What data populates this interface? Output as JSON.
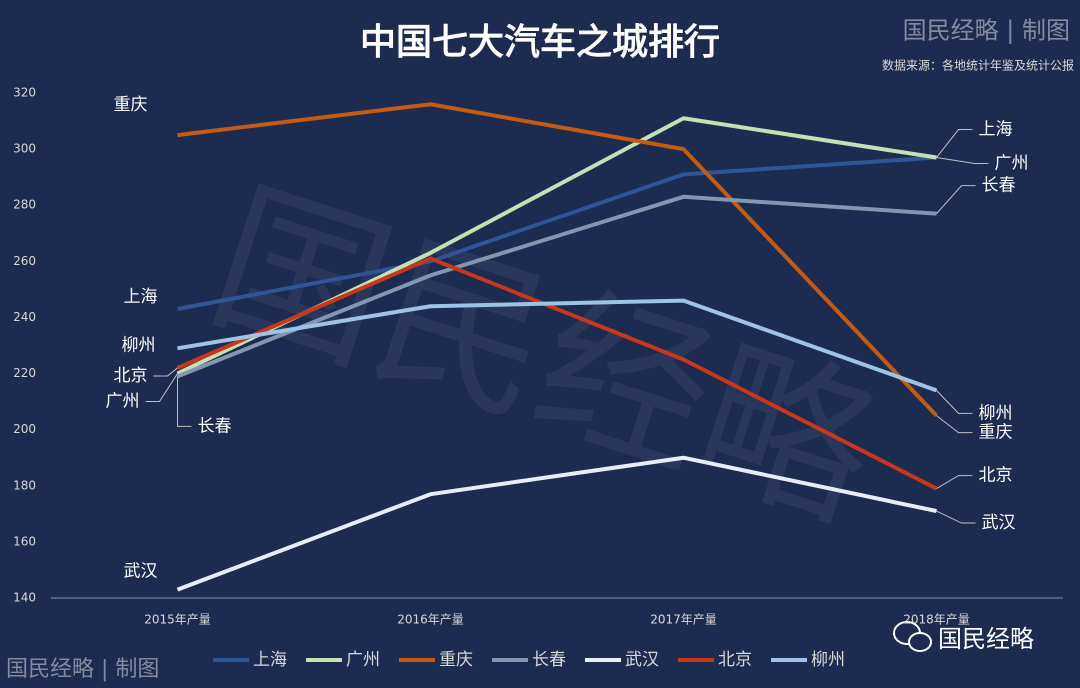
{
  "chart_data": {
    "type": "line",
    "title": "中国七大汽车之城排行",
    "credit_top": "国民经略 | 制图",
    "source": "数据来源：各地统计年鉴及统计公报",
    "credit_bottom": "国民经略 | 制图",
    "brand": "国民经略",
    "watermark": "国民经略",
    "categories": [
      "2015年产量",
      "2016年产量",
      "2017年产量",
      "2018年产量"
    ],
    "series": [
      {
        "name": "上海",
        "color": "#2f5597",
        "values": [
          243,
          260,
          291,
          297
        ]
      },
      {
        "name": "广州",
        "color": "#c5e0b4",
        "values": [
          220,
          263,
          311,
          297
        ]
      },
      {
        "name": "重庆",
        "color": "#c55a11",
        "values": [
          305,
          316,
          300,
          205
        ]
      },
      {
        "name": "长春",
        "color": "#8497b0",
        "values": [
          219,
          255,
          283,
          277
        ]
      },
      {
        "name": "武汉",
        "color": "#e8eef8",
        "values": [
          143,
          177,
          190,
          171
        ]
      },
      {
        "name": "北京",
        "color": "#c9361a",
        "values": [
          222,
          261,
          225,
          179
        ]
      },
      {
        "name": "柳州",
        "color": "#9dc3e6",
        "values": [
          229,
          244,
          246,
          214
        ]
      }
    ],
    "ylim": [
      140,
      320
    ],
    "yticks": [
      140,
      160,
      180,
      200,
      220,
      240,
      260,
      280,
      300,
      320
    ],
    "legend": "bottom"
  }
}
